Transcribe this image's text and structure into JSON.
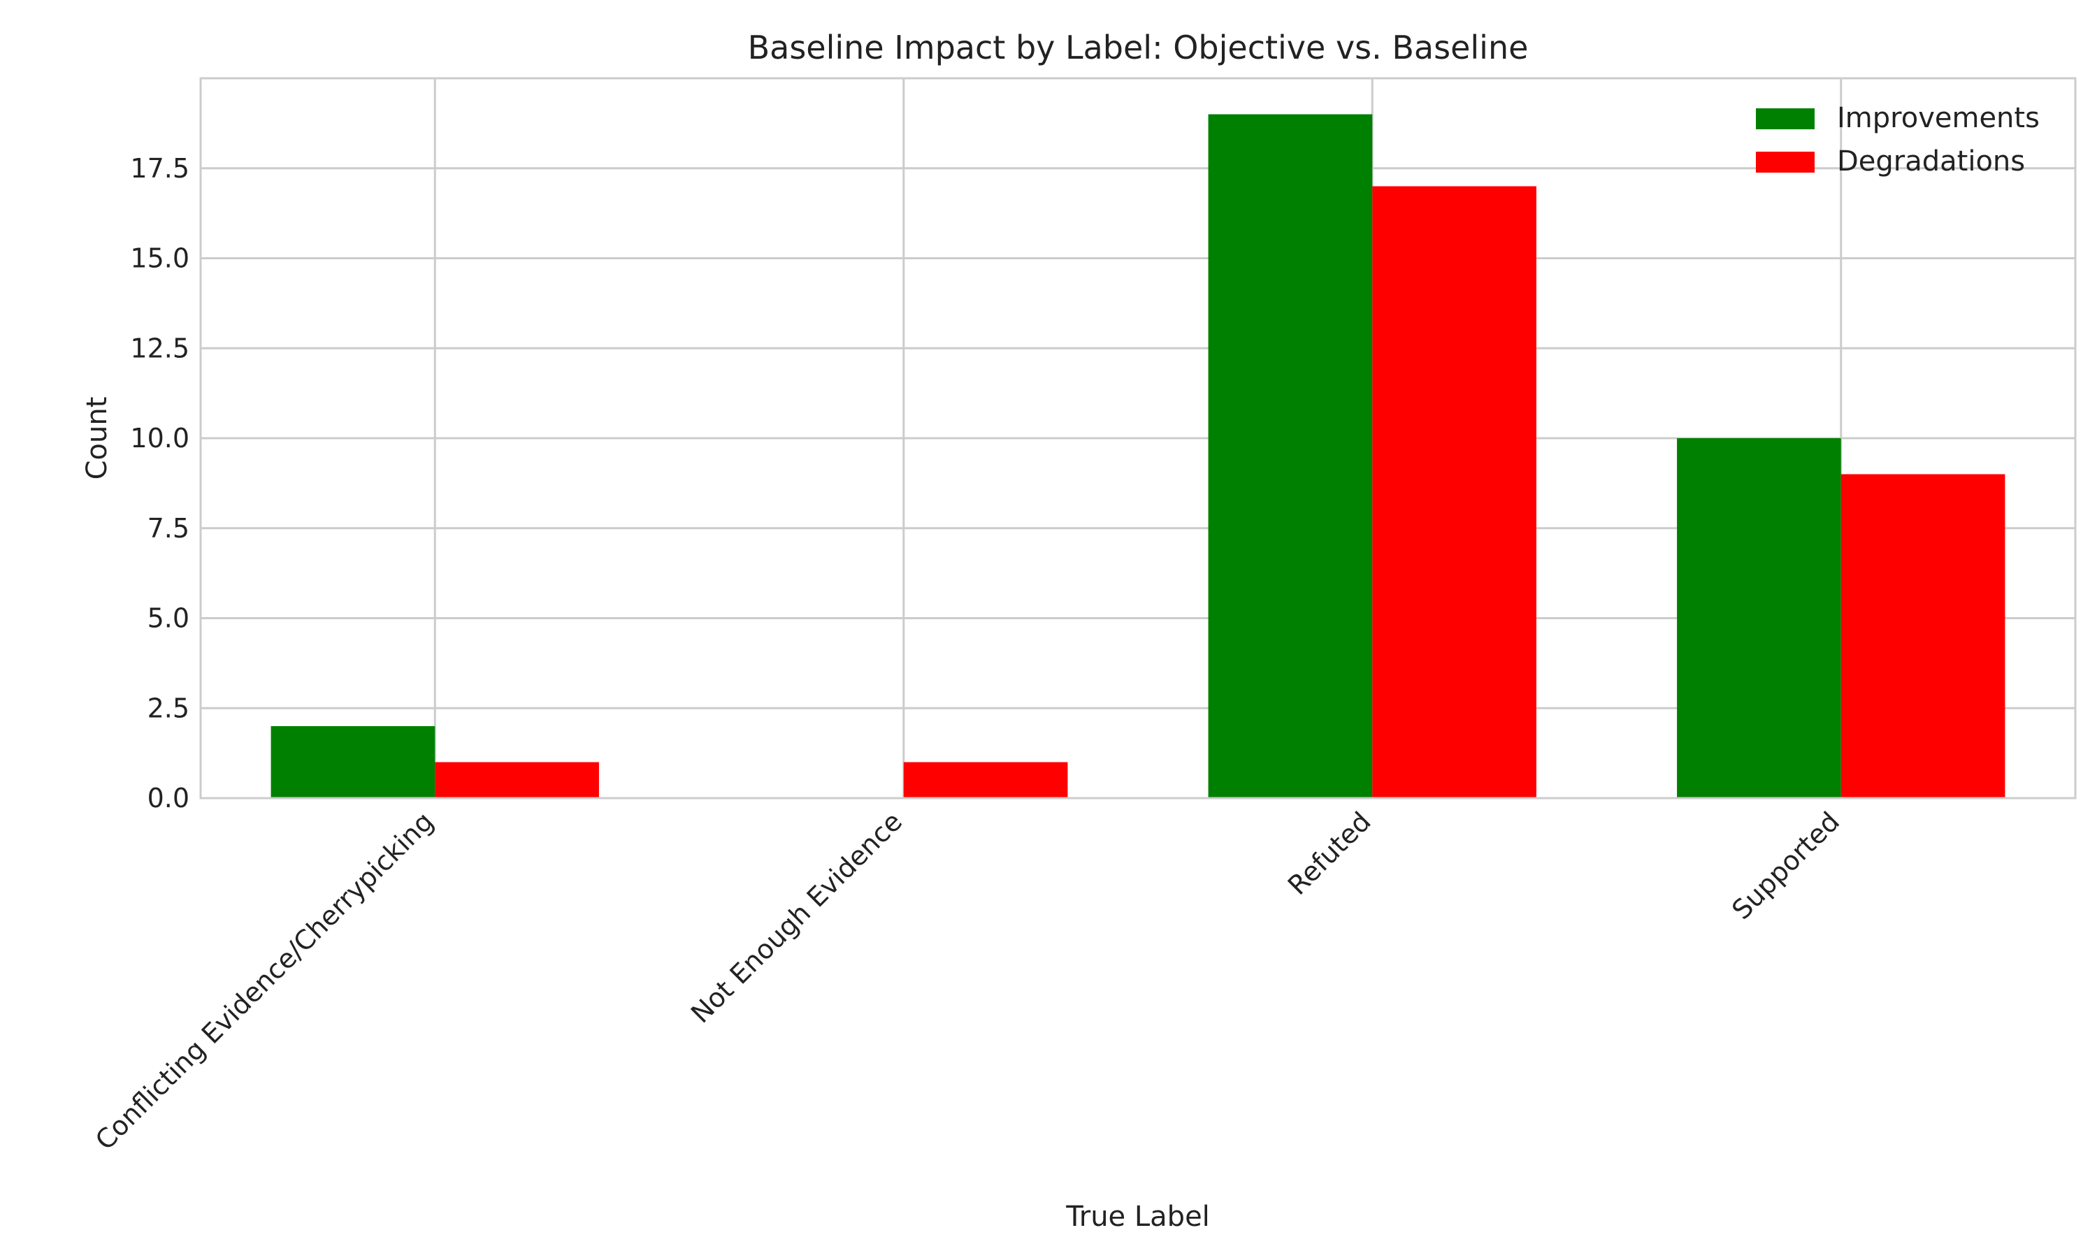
{
  "chart_data": {
    "type": "bar",
    "title": "Baseline Impact by Label: Objective vs. Baseline",
    "xlabel": "True Label",
    "ylabel": "Count",
    "categories": [
      "Conflicting Evidence/Cherrypicking",
      "Not Enough Evidence",
      "Refuted",
      "Supported"
    ],
    "series": [
      {
        "name": "Improvements",
        "color": "#008000",
        "values": [
          2,
          0,
          19,
          10
        ]
      },
      {
        "name": "Degradations",
        "color": "#ff0000",
        "values": [
          1,
          1,
          17,
          9
        ]
      }
    ],
    "ylim": [
      0,
      20
    ],
    "yticks": [
      "0.0",
      "2.5",
      "5.0",
      "7.5",
      "10.0",
      "12.5",
      "15.0",
      "17.5"
    ],
    "grid": true,
    "legend_position": "top-right"
  }
}
